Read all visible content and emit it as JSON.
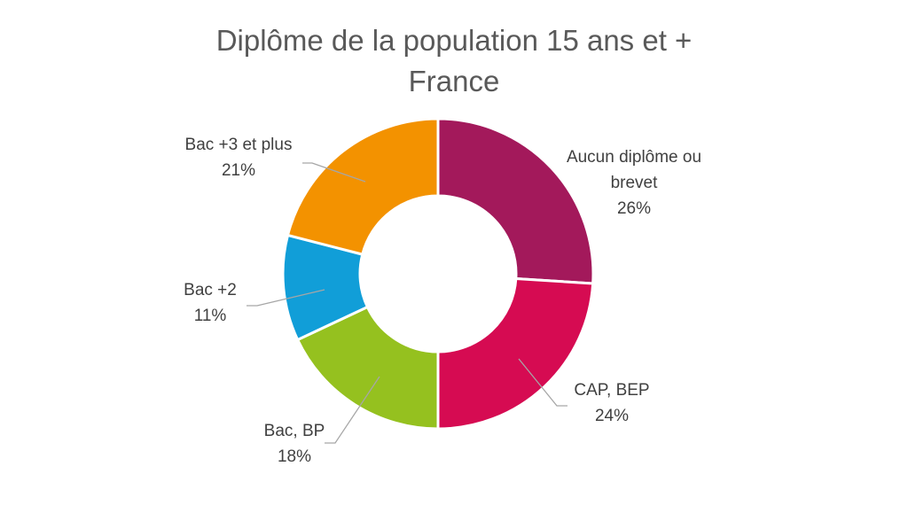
{
  "chart_data": {
    "type": "pie",
    "variant": "donut",
    "title": [
      "Diplôme de la population 15 ans et +",
      "France"
    ],
    "slices": [
      {
        "name": "Aucun diplôme ou brevet",
        "label_lines": [
          "Aucun diplôme ou",
          "brevet"
        ],
        "value": 26,
        "label": "26%",
        "color": "#A3195B"
      },
      {
        "name": "CAP, BEP",
        "label_lines": [
          "CAP, BEP"
        ],
        "value": 24,
        "label": "24%",
        "color": "#D60B52"
      },
      {
        "name": "Bac, BP",
        "label_lines": [
          "Bac, BP"
        ],
        "value": 18,
        "label": "18%",
        "color": "#95C11F"
      },
      {
        "name": "Bac +2",
        "label_lines": [
          "Bac +2"
        ],
        "value": 11,
        "label": "11%",
        "color": "#119ED8"
      },
      {
        "name": "Bac +3 et plus",
        "label_lines": [
          "Bac +3 et plus"
        ],
        "value": 21,
        "label": "21%",
        "color": "#F39200"
      }
    ],
    "legend": "none",
    "labels": "outside-with-leader-lines"
  }
}
